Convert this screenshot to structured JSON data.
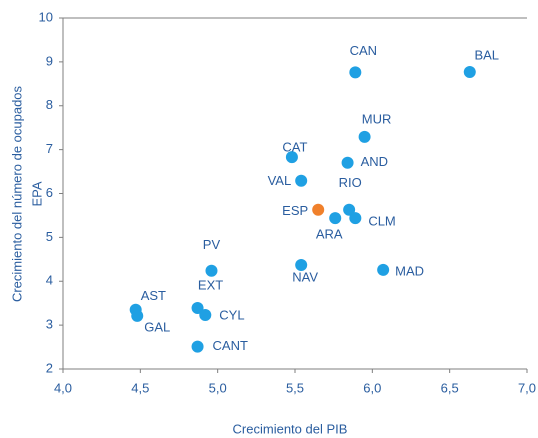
{
  "chart_data": {
    "type": "scatter",
    "xlabel": "Crecimiento del PIB",
    "ylabel": [
      "Crecimiento del número de ocupados",
      "EPA"
    ],
    "labels": [
      "CAN",
      "BAL",
      "MUR",
      "CAT",
      "AND",
      "VAL",
      "ESP",
      "RIO",
      "ARA",
      "CLM",
      "PV",
      "NAV",
      "MAD",
      "EXT",
      "CYL",
      "AST",
      "GAL",
      "CANT"
    ],
    "x": [
      5.89,
      6.63,
      5.95,
      5.48,
      5.84,
      5.54,
      5.65,
      5.85,
      5.76,
      5.89,
      4.96,
      5.54,
      6.07,
      4.87,
      4.92,
      4.47,
      4.48,
      4.87
    ],
    "y": [
      8.76,
      8.77,
      7.29,
      6.83,
      6.7,
      6.29,
      5.63,
      5.63,
      5.44,
      5.44,
      4.24,
      4.37,
      4.26,
      3.39,
      3.23,
      3.35,
      3.21,
      2.51
    ],
    "point_colors": [
      "#1fa0e3",
      "#1fa0e3",
      "#1fa0e3",
      "#1fa0e3",
      "#1fa0e3",
      "#1fa0e3",
      "#f0802b",
      "#1fa0e3",
      "#1fa0e3",
      "#1fa0e3",
      "#1fa0e3",
      "#1fa0e3",
      "#1fa0e3",
      "#1fa0e3",
      "#1fa0e3",
      "#1fa0e3",
      "#1fa0e3",
      "#1fa0e3"
    ],
    "xlim": [
      4,
      7
    ],
    "xticks": [
      {
        "value": 4,
        "label": "4,0"
      },
      {
        "value": 4.5,
        "label": "4,5"
      },
      {
        "value": 5,
        "label": "5,0"
      },
      {
        "value": 5.5,
        "label": "5,5"
      },
      {
        "value": 6,
        "label": "6,0"
      },
      {
        "value": 6.5,
        "label": "6,5"
      },
      {
        "value": 7,
        "label": "7,0"
      }
    ],
    "ylim": [
      2,
      10
    ],
    "yticks": [
      2,
      3,
      4,
      5,
      6,
      7,
      8,
      9,
      10
    ]
  }
}
